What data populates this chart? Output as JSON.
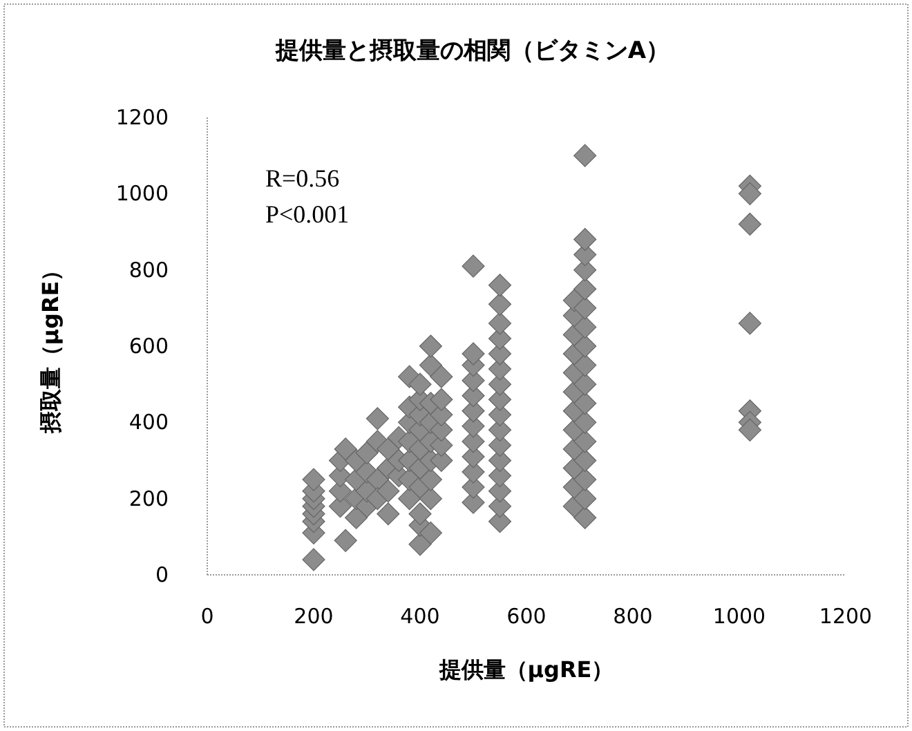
{
  "chart_data": {
    "type": "scatter",
    "title": "提供量と摂取量の相関（ビタミンA）",
    "xlabel": "提供量（μgRE）",
    "ylabel": "摂取量（μgRE）",
    "annotations": [
      "R=0.56",
      "P<0.001"
    ],
    "marker": "diamond",
    "xlim": [
      0,
      1200
    ],
    "xticks": [
      0,
      200,
      400,
      600,
      800,
      1000,
      1200
    ],
    "ylim": [
      0,
      1200
    ],
    "yticks": [
      0,
      200,
      400,
      600,
      800,
      1000,
      1200
    ],
    "series": [
      {
        "color": "#8c8c8c",
        "x": [
          200,
          200,
          200,
          200,
          200,
          200,
          200,
          200,
          260,
          250,
          250,
          250,
          250,
          260,
          280,
          280,
          280,
          280,
          300,
          300,
          300,
          300,
          320,
          320,
          320,
          320,
          340,
          340,
          340,
          340,
          360,
          360,
          360,
          380,
          380,
          380,
          380,
          380,
          380,
          380,
          400,
          400,
          400,
          400,
          400,
          400,
          400,
          400,
          400,
          400,
          420,
          420,
          420,
          420,
          420,
          420,
          420,
          420,
          420,
          440,
          440,
          440,
          440,
          440,
          440,
          500,
          500,
          500,
          500,
          500,
          500,
          500,
          500,
          500,
          500,
          500,
          500,
          550,
          550,
          550,
          550,
          550,
          550,
          550,
          550,
          550,
          550,
          550,
          550,
          550,
          550,
          550,
          550,
          690,
          690,
          690,
          690,
          690,
          690,
          690,
          690,
          690,
          690,
          690,
          690,
          710,
          710,
          710,
          710,
          710,
          710,
          710,
          710,
          710,
          710,
          710,
          710,
          710,
          710,
          710,
          710,
          710,
          1020,
          1020,
          1020,
          1020,
          1020,
          1020,
          1020
        ],
        "values": [
          40,
          110,
          140,
          160,
          180,
          200,
          220,
          250,
          90,
          180,
          220,
          260,
          300,
          330,
          150,
          200,
          250,
          300,
          180,
          220,
          270,
          320,
          410,
          350,
          250,
          200,
          160,
          220,
          280,
          330,
          260,
          300,
          360,
          200,
          250,
          300,
          350,
          400,
          440,
          520,
          80,
          130,
          160,
          230,
          280,
          330,
          380,
          420,
          460,
          500,
          110,
          200,
          250,
          300,
          350,
          400,
          450,
          550,
          600,
          300,
          340,
          380,
          420,
          460,
          520,
          190,
          230,
          270,
          310,
          350,
          390,
          430,
          470,
          510,
          550,
          580,
          810,
          140,
          180,
          220,
          260,
          300,
          340,
          380,
          420,
          460,
          500,
          540,
          580,
          620,
          660,
          710,
          760,
          180,
          230,
          280,
          330,
          380,
          430,
          480,
          530,
          580,
          630,
          680,
          720,
          150,
          200,
          250,
          300,
          350,
          400,
          450,
          500,
          550,
          600,
          650,
          700,
          750,
          800,
          840,
          880,
          1100,
          1020,
          1000,
          920,
          660,
          430,
          400,
          380
        ]
      }
    ]
  }
}
